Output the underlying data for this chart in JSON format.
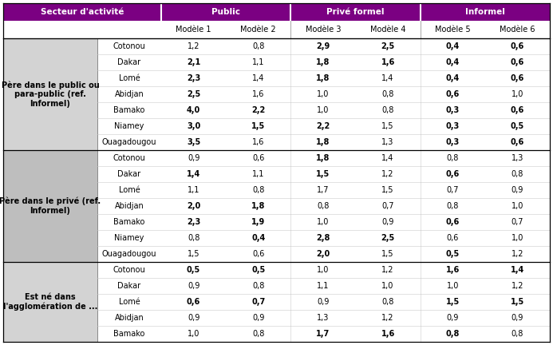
{
  "groups": [
    {
      "label": "Père dans le public ou\npara-public (ref.\nInformel)",
      "cities": [
        "Cotonou",
        "Dakar",
        "Lomé",
        "Abidjan",
        "Bamako",
        "Niamey",
        "Ouagadougou"
      ],
      "values": [
        [
          "1,2",
          "0,8",
          "2,9",
          "2,5",
          "0,4",
          "0,6"
        ],
        [
          "2,1",
          "1,1",
          "1,8",
          "1,6",
          "0,4",
          "0,6"
        ],
        [
          "2,3",
          "1,4",
          "1,8",
          "1,4",
          "0,4",
          "0,6"
        ],
        [
          "2,5",
          "1,6",
          "1,0",
          "0,8",
          "0,6",
          "1,0"
        ],
        [
          "4,0",
          "2,2",
          "1,0",
          "0,8",
          "0,3",
          "0,6"
        ],
        [
          "3,0",
          "1,5",
          "2,2",
          "1,5",
          "0,3",
          "0,5"
        ],
        [
          "3,5",
          "1,6",
          "1,8",
          "1,3",
          "0,3",
          "0,6"
        ]
      ],
      "bold": [
        [
          false,
          false,
          true,
          true,
          true,
          true
        ],
        [
          true,
          false,
          true,
          true,
          true,
          true
        ],
        [
          true,
          false,
          true,
          false,
          true,
          true
        ],
        [
          true,
          false,
          false,
          false,
          true,
          false
        ],
        [
          true,
          true,
          false,
          false,
          true,
          true
        ],
        [
          true,
          true,
          true,
          false,
          true,
          true
        ],
        [
          true,
          false,
          true,
          false,
          true,
          true
        ]
      ]
    },
    {
      "label": "Père dans le privé (ref.\nInformel)",
      "cities": [
        "Cotonou",
        "Dakar",
        "Lomé",
        "Abidjan",
        "Bamako",
        "Niamey",
        "Ouagadougou"
      ],
      "values": [
        [
          "0,9",
          "0,6",
          "1,8",
          "1,4",
          "0,8",
          "1,3"
        ],
        [
          "1,4",
          "1,1",
          "1,5",
          "1,2",
          "0,6",
          "0,8"
        ],
        [
          "1,1",
          "0,8",
          "1,7",
          "1,5",
          "0,7",
          "0,9"
        ],
        [
          "2,0",
          "1,8",
          "0,8",
          "0,7",
          "0,8",
          "1,0"
        ],
        [
          "2,3",
          "1,9",
          "1,0",
          "0,9",
          "0,6",
          "0,7"
        ],
        [
          "0,8",
          "0,4",
          "2,8",
          "2,5",
          "0,6",
          "1,0"
        ],
        [
          "1,5",
          "0,6",
          "2,0",
          "1,5",
          "0,5",
          "1,2"
        ]
      ],
      "bold": [
        [
          false,
          false,
          true,
          false,
          false,
          false
        ],
        [
          true,
          false,
          true,
          false,
          true,
          false
        ],
        [
          false,
          false,
          false,
          false,
          false,
          false
        ],
        [
          true,
          true,
          false,
          false,
          false,
          false
        ],
        [
          true,
          true,
          false,
          false,
          true,
          false
        ],
        [
          false,
          true,
          true,
          true,
          false,
          false
        ],
        [
          false,
          false,
          true,
          false,
          true,
          false
        ]
      ]
    },
    {
      "label": "Est né dans\nl'agglomération de ...",
      "cities": [
        "Cotonou",
        "Dakar",
        "Lomé",
        "Abidjan",
        "Bamako"
      ],
      "values": [
        [
          "0,5",
          "0,5",
          "1,0",
          "1,2",
          "1,6",
          "1,4"
        ],
        [
          "0,9",
          "0,8",
          "1,1",
          "1,0",
          "1,0",
          "1,2"
        ],
        [
          "0,6",
          "0,7",
          "0,9",
          "0,8",
          "1,5",
          "1,5"
        ],
        [
          "0,9",
          "0,9",
          "1,3",
          "1,2",
          "0,9",
          "0,9"
        ],
        [
          "1,0",
          "0,8",
          "1,7",
          "1,6",
          "0,8",
          "0,8"
        ]
      ],
      "bold": [
        [
          true,
          true,
          false,
          false,
          true,
          true
        ],
        [
          false,
          false,
          false,
          false,
          false,
          false
        ],
        [
          true,
          true,
          false,
          false,
          true,
          true
        ],
        [
          false,
          false,
          false,
          false,
          false,
          false
        ],
        [
          false,
          false,
          true,
          true,
          true,
          false
        ]
      ]
    }
  ],
  "purple": "#7B0082",
  "light_gray": "#D3D3D3",
  "mid_gray": "#BEBEBE",
  "white": "#FFFFFF",
  "sector_headers": [
    "Public",
    "Privé formel",
    "Informel"
  ],
  "model_labels": [
    "Modèle 1",
    "Modèle 2",
    "Modèle 3",
    "Modèle 4",
    "Modèle 5",
    "Modèle 6"
  ],
  "secteur_label": "Secteur d'activité"
}
